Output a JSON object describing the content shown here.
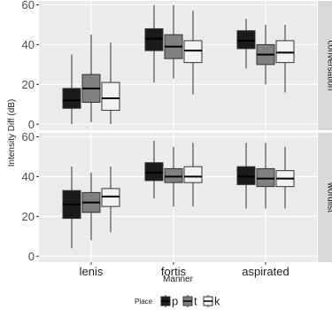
{
  "chart_data": {
    "type": "boxplot",
    "title": "",
    "xlabel": "Manner",
    "ylabel": "Intensity Diff (dB)",
    "ylim": [
      -3,
      62
    ],
    "yticks": [
      0,
      20,
      40,
      60
    ],
    "categories": [
      "lenis",
      "fortis",
      "aspirated"
    ],
    "legend": {
      "title": "Place",
      "position": "bottom",
      "entries": [
        {
          "name": "p",
          "color": "#1a1a1a"
        },
        {
          "name": "t",
          "color": "#808080"
        },
        {
          "name": "k",
          "color": "#f2f2f2"
        }
      ]
    },
    "grid": true,
    "panels": [
      {
        "strip": "conversation",
        "groups": [
          {
            "category": "lenis",
            "boxes": [
              {
                "series": "p",
                "min": 0,
                "q1": 8,
                "median": 12,
                "q3": 18,
                "max": 35
              },
              {
                "series": "t",
                "min": 1,
                "q1": 11,
                "median": 18,
                "q3": 25,
                "max": 45
              },
              {
                "series": "k",
                "min": 0,
                "q1": 7,
                "median": 13,
                "q3": 21,
                "max": 41
              }
            ]
          },
          {
            "category": "fortis",
            "boxes": [
              {
                "series": "p",
                "min": 21,
                "q1": 37,
                "median": 43,
                "q3": 48,
                "max": 60
              },
              {
                "series": "t",
                "min": 23,
                "q1": 33,
                "median": 39,
                "q3": 45,
                "max": 60
              },
              {
                "series": "k",
                "min": 15,
                "q1": 31,
                "median": 37,
                "q3": 42,
                "max": 57
              }
            ]
          },
          {
            "category": "aspirated",
            "boxes": [
              {
                "series": "p",
                "min": 28,
                "q1": 38,
                "median": 42,
                "q3": 47,
                "max": 53
              },
              {
                "series": "t",
                "min": 20,
                "q1": 30,
                "median": 35,
                "q3": 40,
                "max": 50
              },
              {
                "series": "k",
                "min": 16,
                "q1": 31,
                "median": 36,
                "q3": 42,
                "max": 50
              }
            ]
          }
        ]
      },
      {
        "strip": "wordlist",
        "groups": [
          {
            "category": "lenis",
            "boxes": [
              {
                "series": "p",
                "min": 4,
                "q1": 19,
                "median": 26,
                "q3": 33,
                "max": 45
              },
              {
                "series": "t",
                "min": 8,
                "q1": 22,
                "median": 27,
                "q3": 32,
                "max": 42
              },
              {
                "series": "k",
                "min": 12,
                "q1": 25,
                "median": 30,
                "q3": 34,
                "max": 45
              }
            ]
          },
          {
            "category": "fortis",
            "boxes": [
              {
                "series": "p",
                "min": 29,
                "q1": 38,
                "median": 42,
                "q3": 47,
                "max": 58
              },
              {
                "series": "t",
                "min": 25,
                "q1": 37,
                "median": 40,
                "q3": 44,
                "max": 55
              },
              {
                "series": "k",
                "min": 25,
                "q1": 37,
                "median": 40,
                "q3": 45,
                "max": 57
              }
            ]
          },
          {
            "category": "aspirated",
            "boxes": [
              {
                "series": "p",
                "min": 24,
                "q1": 36,
                "median": 40,
                "q3": 45,
                "max": 57
              },
              {
                "series": "t",
                "min": 24,
                "q1": 35,
                "median": 39,
                "q3": 44,
                "max": 57
              },
              {
                "series": "k",
                "min": 24,
                "q1": 35,
                "median": 39,
                "q3": 43,
                "max": 55
              }
            ]
          }
        ]
      }
    ]
  }
}
